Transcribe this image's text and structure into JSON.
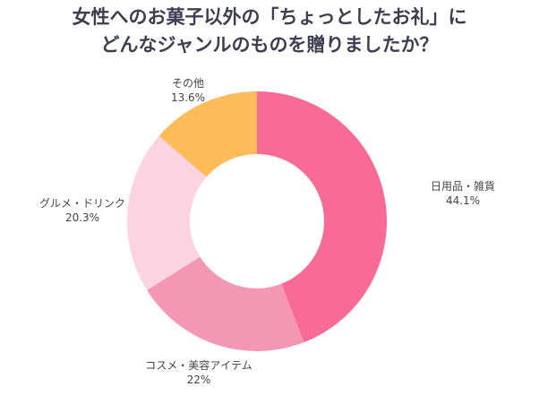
{
  "chart_data": {
    "type": "pie",
    "donut": true,
    "title_lines": [
      "女性へのお菓子以外の「ちょっとしたお礼」に",
      "どんなジャンルのものを贈りましたか？"
    ],
    "slices": [
      {
        "label": "日用品・雑貨",
        "value": 44.1,
        "value_label": "44.1%",
        "color": "#F86B96"
      },
      {
        "label": "コスメ・美容アイテム",
        "value": 22,
        "value_label": "22%",
        "color": "#F497B5"
      },
      {
        "label": "グルメ・ドリンク",
        "value": 20.3,
        "value_label": "20.3%",
        "color": "#FBD3E1"
      },
      {
        "label": "その他",
        "value": 13.6,
        "value_label": "13.6%",
        "color": "#FDBB5A"
      }
    ],
    "start": "top",
    "direction": "clockwise"
  }
}
